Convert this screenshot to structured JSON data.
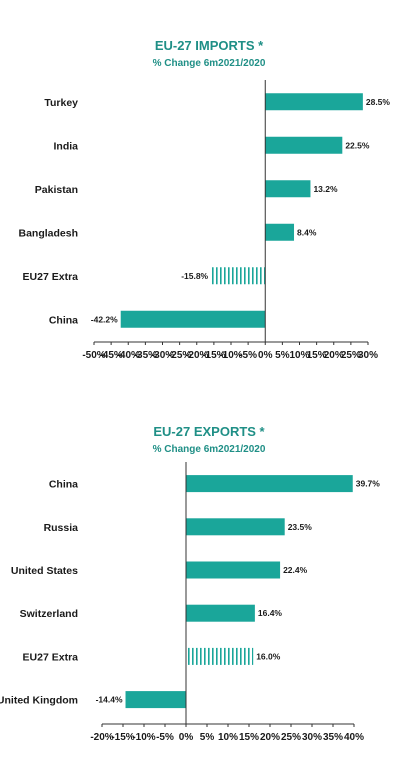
{
  "colors": {
    "bar": "#1aa69a",
    "title": "#1f8f86",
    "axis": "#333333"
  },
  "chart_data": [
    {
      "type": "bar",
      "orientation": "horizontal",
      "title": "EU-27 IMPORTS *",
      "subtitle": "% Change 6m2021/2020",
      "categories": [
        "Turkey",
        "India",
        "Pakistan",
        "Bangladesh",
        "EU27 Extra",
        "China"
      ],
      "values": [
        28.5,
        22.5,
        13.2,
        8.4,
        -15.8,
        -42.2
      ],
      "value_labels": [
        "28.5%",
        "22.5%",
        "13.2%",
        "8.4%",
        "-15.8%",
        "-42.2%"
      ],
      "hatched": [
        false,
        false,
        false,
        false,
        true,
        false
      ],
      "xlim": [
        -50,
        30
      ],
      "ticks": [
        -50,
        -45,
        -40,
        -35,
        -30,
        -25,
        -20,
        -15,
        -10,
        -5,
        0,
        5,
        10,
        15,
        20,
        25,
        30
      ],
      "tick_labels": [
        "-50%",
        "-45%",
        "-40%",
        "-35%",
        "-30%",
        "-25%",
        "-20%",
        "-15%",
        "-10%",
        "-5%",
        "0%",
        "5%",
        "10%",
        "15%",
        "20%",
        "25%",
        "30%"
      ],
      "grid": false
    },
    {
      "type": "bar",
      "orientation": "horizontal",
      "title": "EU-27 EXPORTS *",
      "subtitle": "% Change 6m2021/2020",
      "categories": [
        "China",
        "Russia",
        "United States",
        "Switzerland",
        "EU27 Extra",
        "United Kingdom"
      ],
      "values": [
        39.7,
        23.5,
        22.4,
        16.4,
        16.0,
        -14.4
      ],
      "value_labels": [
        "39.7%",
        "23.5%",
        "22.4%",
        "16.4%",
        "16.0%",
        "-14.4%"
      ],
      "hatched": [
        false,
        false,
        false,
        false,
        true,
        false
      ],
      "xlim": [
        -20,
        40
      ],
      "ticks": [
        -20,
        -15,
        -10,
        -5,
        0,
        5,
        10,
        15,
        20,
        25,
        30,
        35,
        40
      ],
      "tick_labels": [
        "-20%",
        "-15%",
        "-10%",
        "-5%",
        "0%",
        "5%",
        "10%",
        "15%",
        "20%",
        "25%",
        "30%",
        "35%",
        "40%"
      ],
      "grid": false
    }
  ]
}
